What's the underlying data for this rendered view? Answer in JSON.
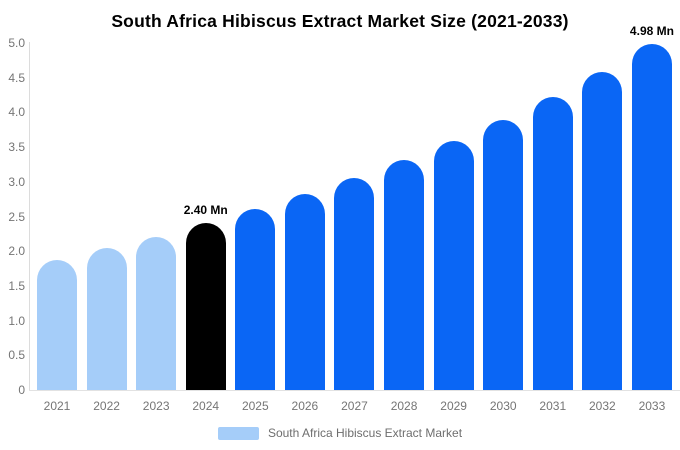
{
  "title": "South Africa Hibiscus Extract Market Size (2021-2033)",
  "colors": {
    "light_blue": "#a5cdf9",
    "blue": "#0a66f5",
    "black": "#000000",
    "axis_text": "#757575",
    "legend_text": "#6e6e6e",
    "axis_line": "#dcdcdc"
  },
  "legend": {
    "label": "South Africa Hibiscus Extract Market"
  },
  "chart_data": {
    "type": "bar",
    "title": "South Africa Hibiscus Extract Market Size (2021-2033)",
    "xlabel": "",
    "ylabel": "",
    "unit": "Mn",
    "categories": [
      "2021",
      "2022",
      "2023",
      "2024",
      "2025",
      "2026",
      "2027",
      "2028",
      "2029",
      "2030",
      "2031",
      "2032",
      "2033"
    ],
    "values": [
      1.87,
      2.04,
      2.21,
      2.4,
      2.61,
      2.83,
      3.06,
      3.32,
      3.59,
      3.89,
      4.22,
      4.58,
      4.98
    ],
    "bar_colors": [
      "light_blue",
      "light_blue",
      "light_blue",
      "black",
      "blue",
      "blue",
      "blue",
      "blue",
      "blue",
      "blue",
      "blue",
      "blue",
      "blue"
    ],
    "ylim": [
      0,
      5
    ],
    "yticks": [
      "5.0",
      "4.5",
      "4.0",
      "3.5",
      "3.0",
      "2.5",
      "2.0",
      "1.5",
      "1.0",
      "0.5",
      "0"
    ],
    "grid": false,
    "legend_position": "bottom",
    "legend_entries": [
      "South Africa Hibiscus Extract Market"
    ],
    "data_labels": [
      {
        "category": "2024",
        "text": "2.40 Mn"
      },
      {
        "category": "2033",
        "text": "4.98 Mn"
      }
    ]
  }
}
